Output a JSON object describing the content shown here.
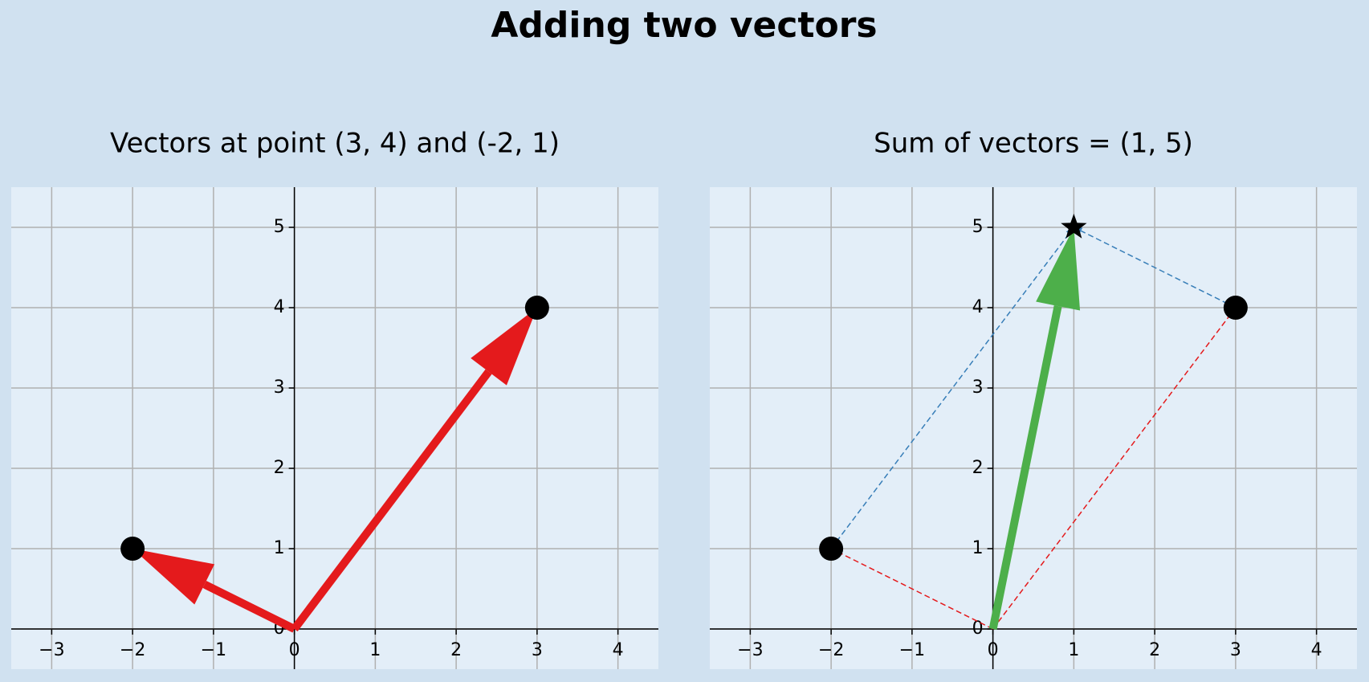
{
  "title": "Adding two vectors",
  "chart_data": [
    {
      "type": "vector",
      "title": "Vectors at point (3, 4) and (-2, 1)",
      "xlim": [
        -3.5,
        4.5
      ],
      "ylim": [
        -0.5,
        5.5
      ],
      "xticks": [
        {
          "value": -3,
          "label": "−3"
        },
        {
          "value": -2,
          "label": "−2"
        },
        {
          "value": -1,
          "label": "−1"
        },
        0,
        1,
        2,
        3,
        4
      ],
      "yticks": [
        0,
        1,
        2,
        3,
        4,
        5
      ],
      "grid": true,
      "vectors": [
        {
          "start": [
            0,
            0
          ],
          "end": [
            3,
            4
          ],
          "color": "#e41a1c",
          "style": "solid"
        },
        {
          "start": [
            0,
            0
          ],
          "end": [
            -2,
            1
          ],
          "color": "#e41a1c",
          "style": "solid"
        }
      ],
      "points": [
        {
          "x": 3,
          "y": 4,
          "marker": "circle",
          "color": "#000000"
        },
        {
          "x": -2,
          "y": 1,
          "marker": "circle",
          "color": "#000000"
        }
      ]
    },
    {
      "type": "vector",
      "title": "Sum of vectors = (1, 5)",
      "xlim": [
        -3.5,
        4.5
      ],
      "ylim": [
        -0.5,
        5.5
      ],
      "xticks": [
        {
          "value": -3,
          "label": "−3"
        },
        {
          "value": -2,
          "label": "−2"
        },
        {
          "value": -1,
          "label": "−1"
        },
        0,
        1,
        2,
        3,
        4
      ],
      "yticks": [
        0,
        1,
        2,
        3,
        4,
        5
      ],
      "grid": true,
      "vectors": [
        {
          "start": [
            0,
            0
          ],
          "end": [
            3,
            4
          ],
          "color": "#e41a1c",
          "style": "dashed"
        },
        {
          "start": [
            0,
            0
          ],
          "end": [
            -2,
            1
          ],
          "color": "#e41a1c",
          "style": "dashed"
        },
        {
          "start": [
            -2,
            1
          ],
          "end": [
            1,
            5
          ],
          "color": "#377eb8",
          "style": "dashed"
        },
        {
          "start": [
            3,
            4
          ],
          "end": [
            1,
            5
          ],
          "color": "#377eb8",
          "style": "dashed"
        },
        {
          "start": [
            0,
            0
          ],
          "end": [
            1,
            5
          ],
          "color": "#4daf4a",
          "style": "solid"
        }
      ],
      "points": [
        {
          "x": 3,
          "y": 4,
          "marker": "circle",
          "color": "#000000"
        },
        {
          "x": -2,
          "y": 1,
          "marker": "circle",
          "color": "#000000"
        },
        {
          "x": 1,
          "y": 5,
          "marker": "star",
          "color": "#000000"
        }
      ]
    }
  ]
}
